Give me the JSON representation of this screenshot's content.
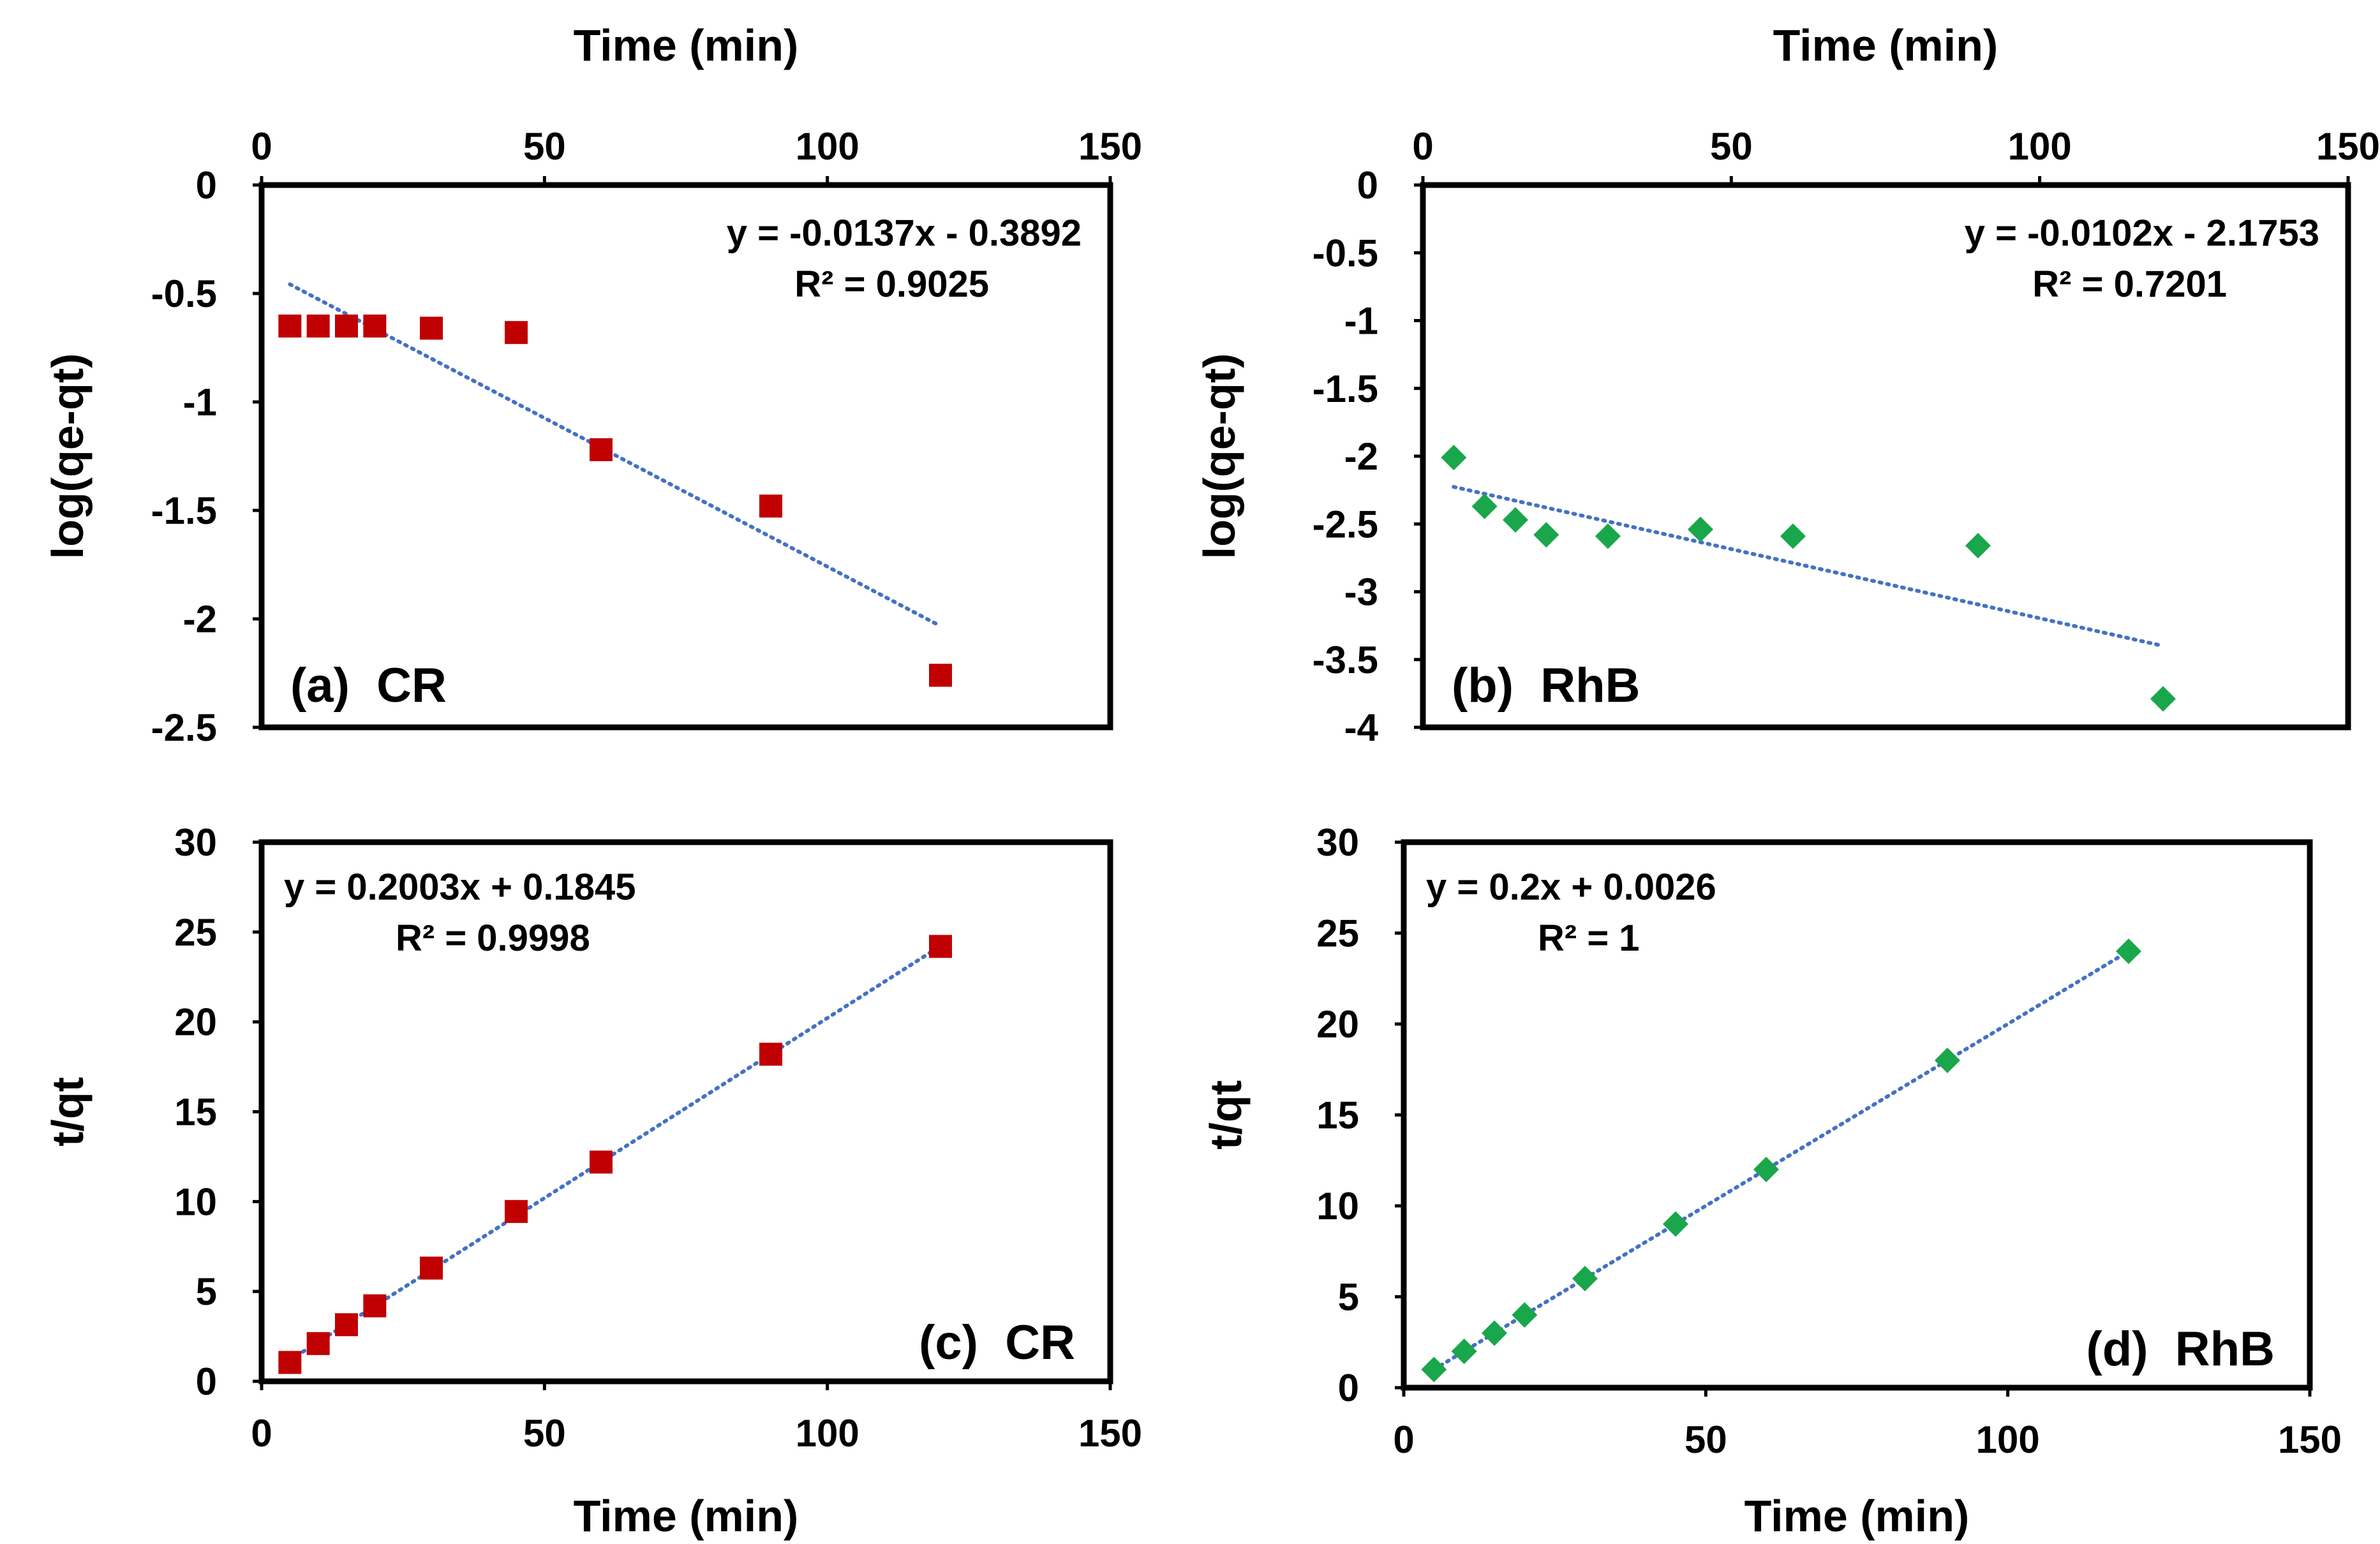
{
  "colors": {
    "cr_marker": "#c00000",
    "rhb_marker": "#1aa64a",
    "trendline": "#4472c4",
    "frame": "#000000"
  },
  "chart_data": [
    {
      "id": "a",
      "type": "scatter",
      "panel_label": "(a)  CR",
      "xlabel": "Time (min)",
      "xlabel_position": "top",
      "ylabel": "log(qe-qt)",
      "xlim": [
        0,
        150
      ],
      "ylim": [
        -2.5,
        0
      ],
      "xticks": [
        0,
        50,
        100,
        150
      ],
      "yticks": [
        0,
        -0.5,
        -1,
        -1.5,
        -2,
        -2.5
      ],
      "marker": "square",
      "color": "#c00000",
      "points": [
        [
          5,
          -0.65
        ],
        [
          10,
          -0.65
        ],
        [
          15,
          -0.65
        ],
        [
          20,
          -0.65
        ],
        [
          30,
          -0.66
        ],
        [
          45,
          -0.68
        ],
        [
          60,
          -1.22
        ],
        [
          90,
          -1.48
        ],
        [
          120,
          -2.26
        ]
      ],
      "trendline": {
        "slope": -0.0137,
        "intercept": -0.3892,
        "x_range": [
          5,
          120
        ]
      },
      "equation": "y = -0.0137x - 0.3892",
      "r2": "R² = 0.9025",
      "annotation_align": "right"
    },
    {
      "id": "b",
      "type": "scatter",
      "panel_label": "(b)  RhB",
      "xlabel": "Time (min)",
      "xlabel_position": "top",
      "ylabel": "log(qe-qt)",
      "xlim": [
        0,
        150
      ],
      "ylim": [
        -4,
        0
      ],
      "xticks": [
        0,
        50,
        100,
        150
      ],
      "yticks": [
        0,
        -0.5,
        -1,
        -1.5,
        -2,
        -2.5,
        -3,
        -3.5,
        -4
      ],
      "marker": "diamond",
      "color": "#1aa64a",
      "points": [
        [
          5,
          -2.01
        ],
        [
          10,
          -2.37
        ],
        [
          15,
          -2.47
        ],
        [
          20,
          -2.58
        ],
        [
          30,
          -2.59
        ],
        [
          45,
          -2.54
        ],
        [
          60,
          -2.59
        ],
        [
          90,
          -2.66
        ],
        [
          120,
          -3.79
        ]
      ],
      "trendline": {
        "slope": -0.0102,
        "intercept": -2.1753,
        "x_range": [
          5,
          120
        ]
      },
      "equation": "y = -0.0102x - 2.1753",
      "r2": "R² = 0.7201",
      "annotation_align": "right"
    },
    {
      "id": "c",
      "type": "scatter",
      "panel_label": "(c)  CR",
      "xlabel": "Time (min)",
      "xlabel_position": "bottom",
      "ylabel": "t/qt",
      "xlim": [
        0,
        150
      ],
      "ylim": [
        0,
        30
      ],
      "xticks": [
        0,
        50,
        100,
        150
      ],
      "yticks": [
        0,
        5,
        10,
        15,
        20,
        25,
        30
      ],
      "marker": "square",
      "color": "#c00000",
      "points": [
        [
          5,
          1.05
        ],
        [
          10,
          2.1
        ],
        [
          15,
          3.15
        ],
        [
          20,
          4.2
        ],
        [
          30,
          6.3
        ],
        [
          45,
          9.45
        ],
        [
          60,
          12.2
        ],
        [
          90,
          18.2
        ],
        [
          120,
          24.2
        ]
      ],
      "trendline": {
        "slope": 0.2003,
        "intercept": 0.1845,
        "x_range": [
          5,
          120
        ]
      },
      "equation": "y = 0.2003x + 0.1845",
      "r2": "R² = 0.9998",
      "annotation_align": "left"
    },
    {
      "id": "d",
      "type": "scatter",
      "panel_label": "(d)  RhB",
      "xlabel": "Time (min)",
      "xlabel_position": "bottom",
      "ylabel": "t/qt",
      "xlim": [
        0,
        150
      ],
      "ylim": [
        0,
        30
      ],
      "xticks": [
        0,
        50,
        100,
        150
      ],
      "yticks": [
        0,
        5,
        10,
        15,
        20,
        25,
        30
      ],
      "marker": "diamond",
      "color": "#1aa64a",
      "points": [
        [
          5,
          1
        ],
        [
          10,
          2
        ],
        [
          15,
          3
        ],
        [
          20,
          4
        ],
        [
          30,
          6
        ],
        [
          45,
          9
        ],
        [
          60,
          12
        ],
        [
          90,
          18
        ],
        [
          120,
          24
        ]
      ],
      "trendline": {
        "slope": 0.2,
        "intercept": 0.0026,
        "x_range": [
          5,
          120
        ]
      },
      "equation": "y = 0.2x + 0.0026",
      "r2": "R² = 1",
      "annotation_align": "left"
    }
  ]
}
